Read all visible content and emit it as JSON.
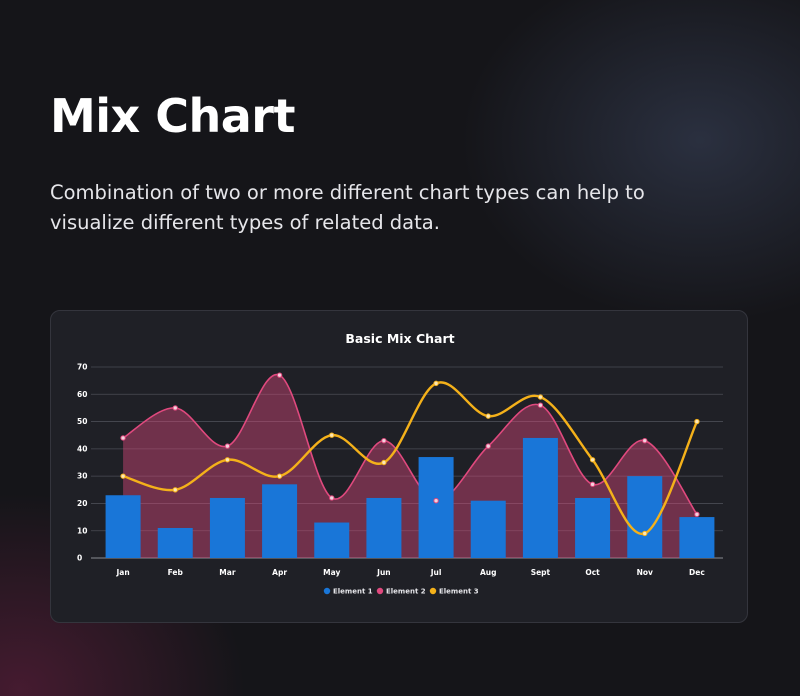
{
  "header": {
    "title": "Mix Chart",
    "subtitle": "Combination of two or more different chart types can help to visualize different types of related data."
  },
  "colors": {
    "element1": "#1976d8",
    "element2": "#e0497e",
    "element3": "#f4b11a"
  },
  "chart_data": {
    "type": "bar",
    "title": "Basic Mix Chart",
    "categories": [
      "Jan",
      "Feb",
      "Mar",
      "Apr",
      "May",
      "Jun",
      "Jul",
      "Aug",
      "Sept",
      "Oct",
      "Nov",
      "Dec"
    ],
    "yticks": [
      0,
      10,
      20,
      30,
      40,
      50,
      60,
      70
    ],
    "ylim": [
      0,
      70
    ],
    "grid": true,
    "legend_position": "bottom",
    "series": [
      {
        "name": "Element 1",
        "type": "bar",
        "values": [
          23,
          11,
          22,
          27,
          13,
          22,
          37,
          21,
          44,
          22,
          30,
          15
        ]
      },
      {
        "name": "Element 2",
        "type": "area",
        "values": [
          44,
          55,
          41,
          67,
          22,
          43,
          21,
          41,
          56,
          27,
          43,
          16
        ]
      },
      {
        "name": "Element 3",
        "type": "line",
        "values": [
          30,
          25,
          36,
          30,
          45,
          35,
          64,
          52,
          59,
          36,
          9,
          50
        ]
      }
    ]
  }
}
